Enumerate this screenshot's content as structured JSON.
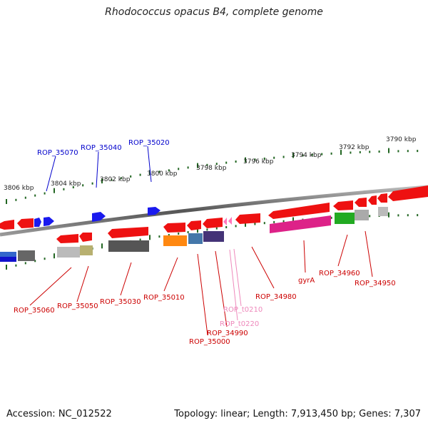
{
  "title": "Rhodococcus opacus B4, complete genome",
  "footer": {
    "accession": "Accession: NC_012522",
    "stats": "Topology: linear; Length: 7,913,450 bp; Genes: 7,307"
  },
  "scale": {
    "labels": [
      "3806 kbp",
      "3804 kbp",
      "3802 kbp",
      "3800 kbp",
      "3798 kbp",
      "3796 kbp",
      "3794 kbp",
      "3792 kbp",
      "3790 kbp"
    ]
  },
  "genes_top": [
    {
      "name": "ROP_35070",
      "color": "#0000cc"
    },
    {
      "name": "ROP_35040",
      "color": "#0000cc"
    },
    {
      "name": "ROP_35020",
      "color": "#0000cc"
    }
  ],
  "genes_bottom": [
    {
      "name": "ROP_35060",
      "color": "#cc0000"
    },
    {
      "name": "ROP_35050",
      "color": "#cc0000"
    },
    {
      "name": "ROP_35030",
      "color": "#cc0000"
    },
    {
      "name": "ROP_35010",
      "color": "#cc0000"
    },
    {
      "name": "ROP_35000",
      "color": "#cc0000"
    },
    {
      "name": "ROP_34990",
      "color": "#cc0000"
    },
    {
      "name": "ROP_t0210",
      "color": "#ee88bb"
    },
    {
      "name": "ROP_t0220",
      "color": "#ee88bb"
    },
    {
      "name": "ROP_34980",
      "color": "#cc0000"
    },
    {
      "name": "gyrA",
      "color": "#cc0000"
    },
    {
      "name": "ROP_34960",
      "color": "#cc0000"
    },
    {
      "name": "ROP_34950",
      "color": "#cc0000"
    }
  ],
  "colors": {
    "gene_red": "#ee1111",
    "gene_blue": "#1111ee",
    "trna_pink": "#ff77bb",
    "backbone": "#777777",
    "tick_green": "#226622"
  }
}
